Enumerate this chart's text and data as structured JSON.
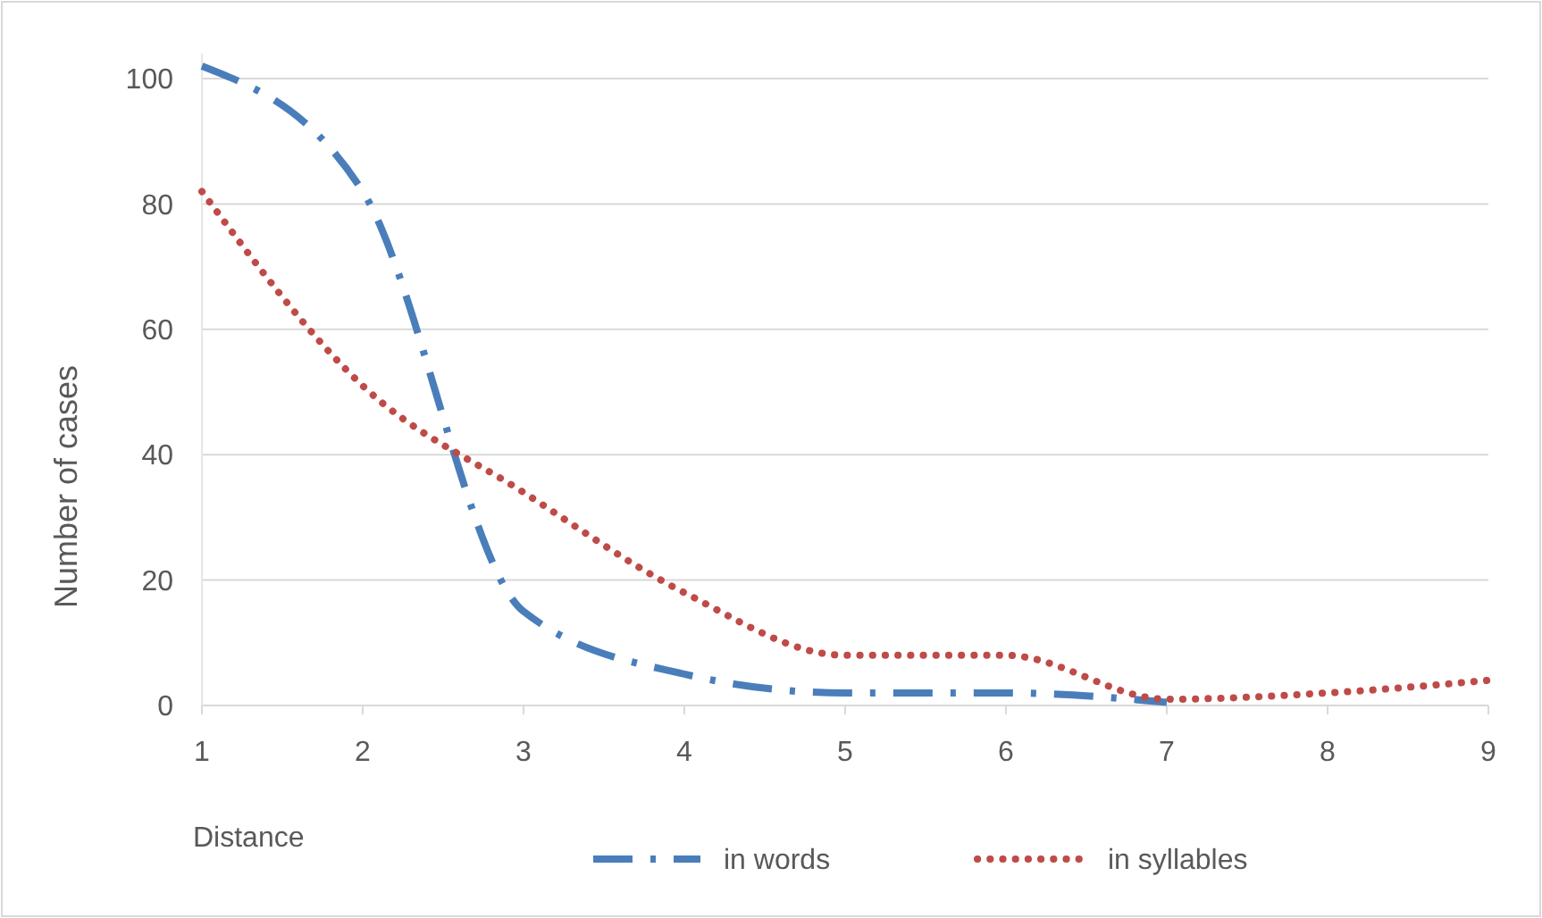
{
  "chart_data": {
    "type": "line",
    "xlabel": "Distance",
    "ylabel": "Number of cases",
    "xlim": [
      1,
      9
    ],
    "xticks": [
      1,
      2,
      3,
      4,
      5,
      6,
      7,
      8,
      9
    ],
    "ylim": [
      0,
      104
    ],
    "yticks": [
      0,
      20,
      40,
      60,
      80,
      100
    ],
    "grid": "y",
    "legend": "bottom",
    "series": [
      {
        "name": "in words",
        "color": "#4a7ebb",
        "line_style": "dashed",
        "x": [
          1,
          2,
          3,
          4,
          5,
          6,
          7
        ],
        "values": [
          102,
          82,
          15,
          5,
          2,
          2,
          0.5
        ]
      },
      {
        "name": "in syllables",
        "color": "#be4b48",
        "line_style": "dotted",
        "x": [
          1,
          2,
          3,
          4,
          5,
          6,
          7,
          8,
          9
        ],
        "values": [
          82,
          51,
          34,
          18,
          8,
          8,
          1,
          2,
          4
        ]
      }
    ]
  }
}
